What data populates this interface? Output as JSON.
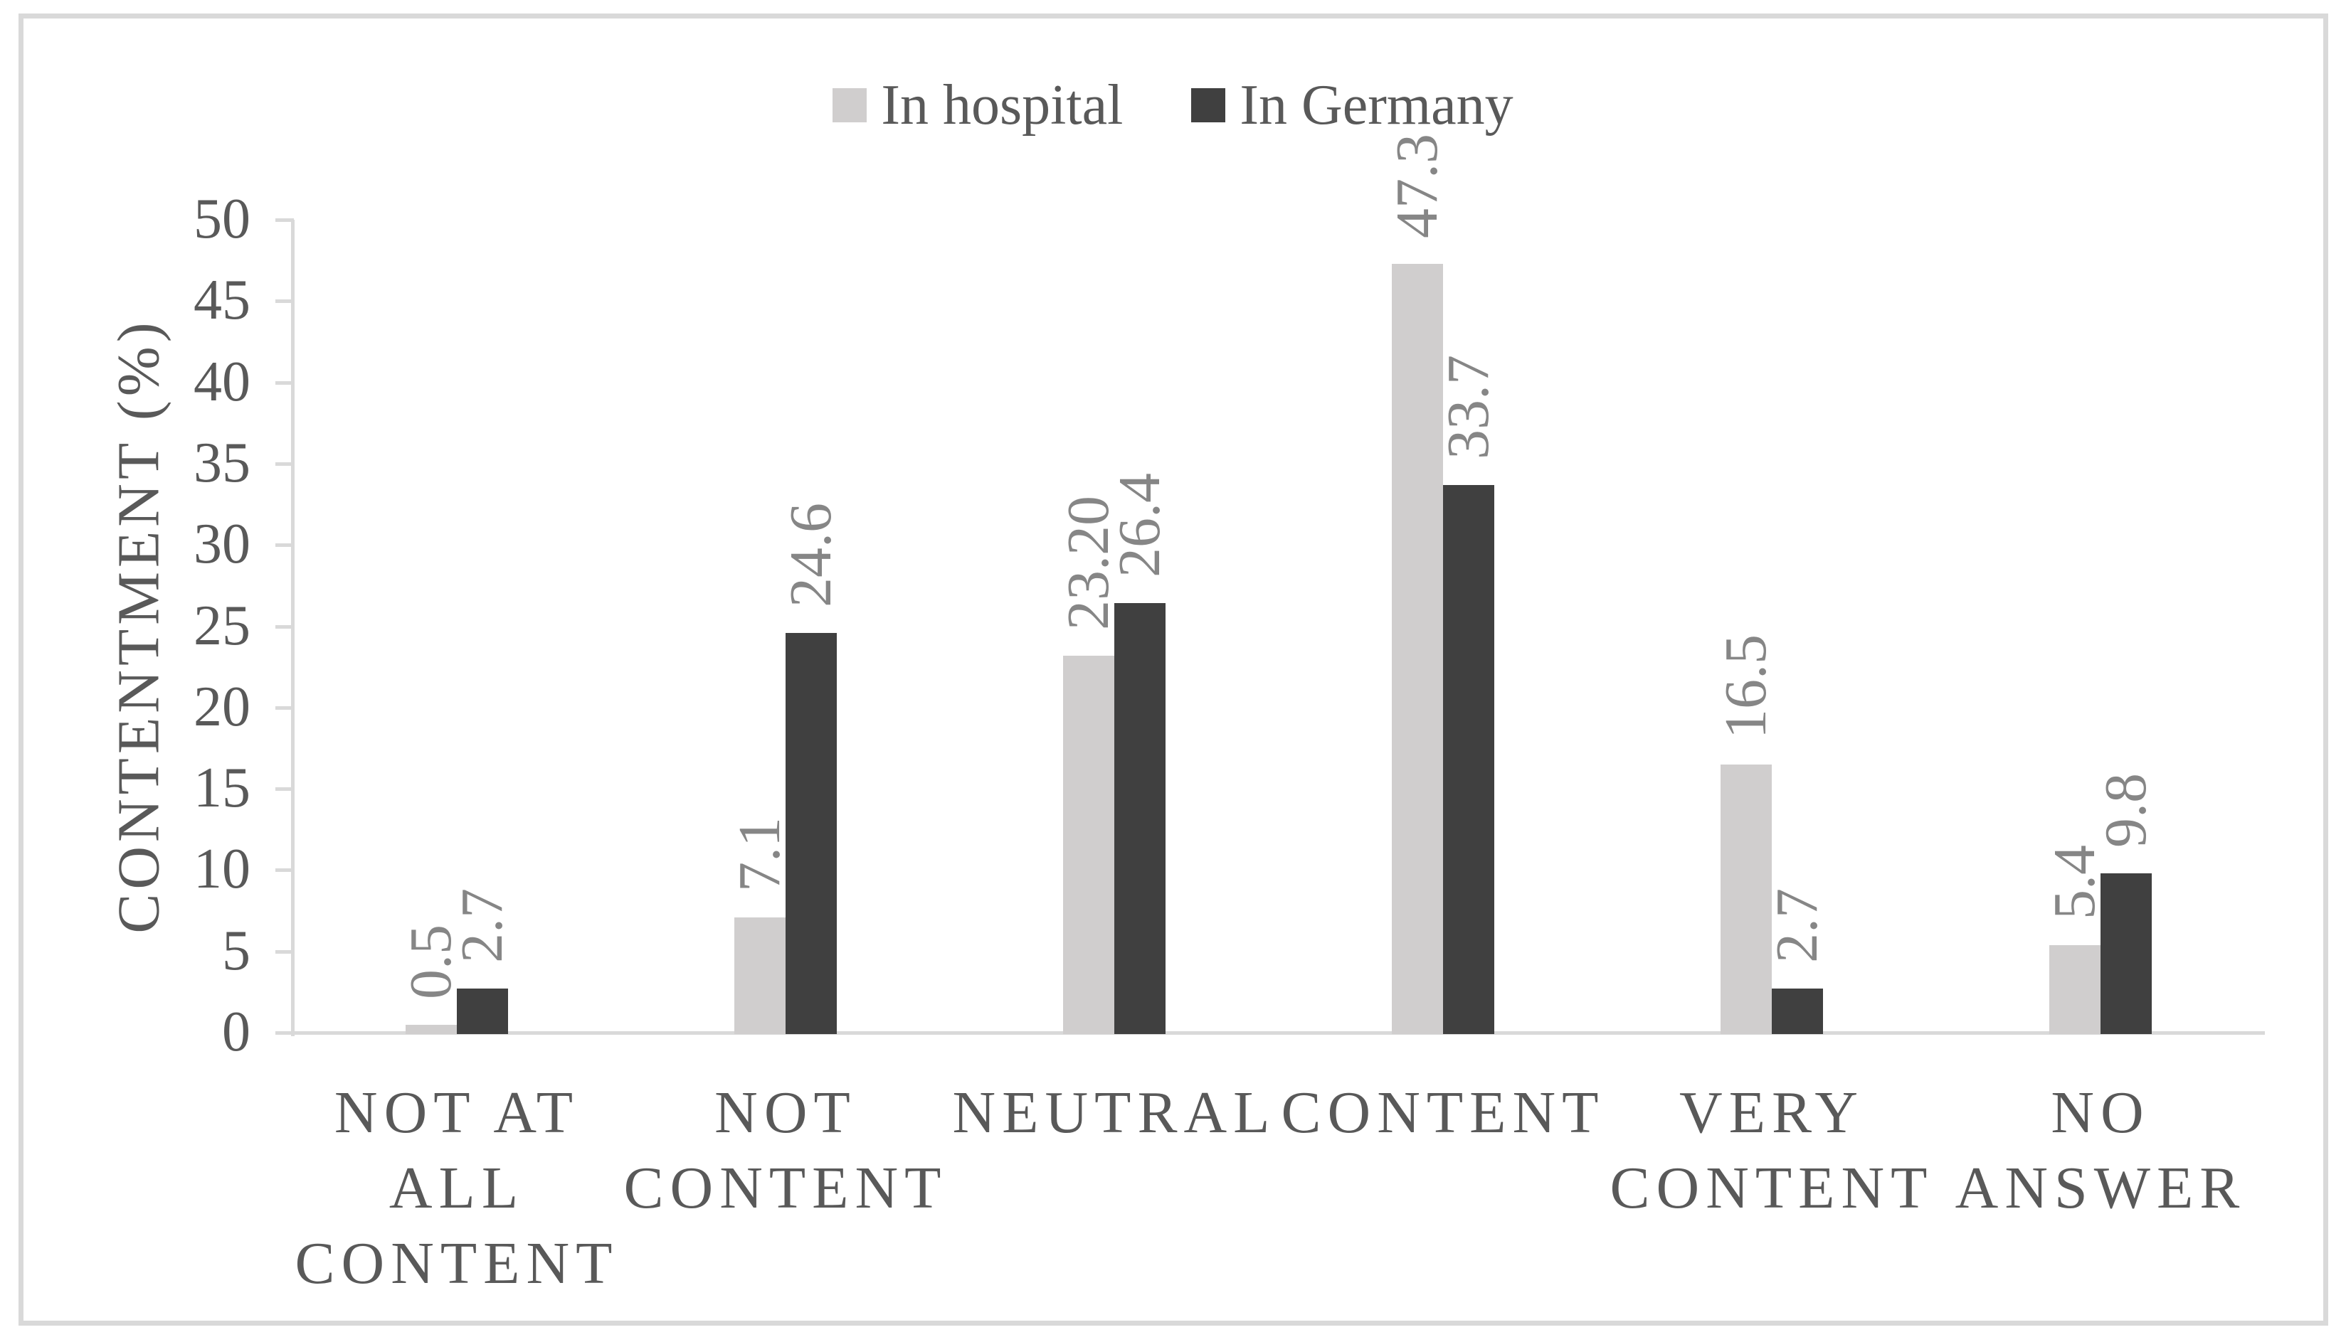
{
  "figure": {
    "background": "#ffffff",
    "frame_color": "#d9d9d9"
  },
  "chart_data": {
    "type": "bar",
    "title": "",
    "ylabel": "CONTENTMENT (%)",
    "xlabel": "",
    "ylim": [
      0,
      50
    ],
    "ytick_step": 5,
    "ytick_labels": [
      "50",
      "45",
      "40",
      "35",
      "30",
      "25",
      "20",
      "15",
      "10",
      "5",
      "0"
    ],
    "grid": false,
    "legend_position": "top",
    "categories": [
      "NOT AT ALL CONTENT",
      "NOT CONTENT",
      "NEUTRAL",
      "CONTENT",
      "VERY CONTENT",
      "NO ANSWER"
    ],
    "category_label_lines": [
      [
        "NOT AT",
        "ALL",
        "CONTENT"
      ],
      [
        "NOT",
        "CONTENT"
      ],
      [
        "NEUTRAL"
      ],
      [
        "CONTENT"
      ],
      [
        "VERY",
        "CONTENT"
      ],
      [
        "NO",
        "ANSWER"
      ]
    ],
    "series": [
      {
        "name": "In hospital",
        "color": "#d0cece",
        "values": [
          0.5,
          7.1,
          23.2,
          47.3,
          16.5,
          5.4
        ],
        "data_labels": [
          "0.5",
          "7.1",
          "23.20",
          "47.3",
          "16.5",
          "5.4"
        ]
      },
      {
        "name": "In Germany",
        "color": "#404040",
        "values": [
          2.7,
          24.6,
          26.4,
          33.7,
          2.7,
          9.8
        ],
        "data_labels": [
          "2.7",
          "24.6",
          "26.4",
          "33.7",
          "2.7",
          "9.8"
        ]
      }
    ],
    "colors": {
      "axis_line": "#d9d9d9",
      "tick_label_text": "#595959",
      "category_text": "#595959",
      "legend_text": "#595959",
      "data_label_text": "#868686"
    }
  }
}
